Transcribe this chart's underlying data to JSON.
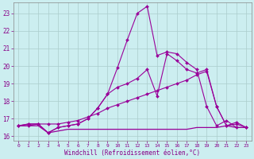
{
  "xlabel": "Windchill (Refroidissement éolien,°C)",
  "xlim": [
    -0.5,
    23.5
  ],
  "ylim": [
    15.75,
    23.6
  ],
  "xticks": [
    0,
    1,
    2,
    3,
    4,
    5,
    6,
    7,
    8,
    9,
    10,
    11,
    12,
    13,
    14,
    15,
    16,
    17,
    18,
    19,
    20,
    21,
    22,
    23
  ],
  "yticks": [
    16,
    17,
    18,
    19,
    20,
    21,
    22,
    23
  ],
  "bg_color": "#cceef0",
  "line_color": "#990099",
  "grid_color": "#aacccc",
  "lines": [
    {
      "x": [
        0,
        1,
        2,
        3,
        4,
        5,
        6,
        7,
        8,
        9,
        10,
        11,
        12,
        13,
        14,
        15,
        16,
        17,
        18,
        19,
        20,
        21,
        22,
        23
      ],
      "y": [
        16.6,
        16.7,
        16.7,
        16.2,
        16.5,
        16.6,
        16.7,
        17.0,
        17.6,
        18.4,
        19.9,
        21.5,
        23.0,
        23.4,
        20.6,
        20.8,
        20.7,
        20.2,
        19.8,
        17.7,
        16.6,
        16.9,
        16.5,
        16.5
      ],
      "marker": "D",
      "markersize": 2.0,
      "linewidth": 0.8
    },
    {
      "x": [
        0,
        1,
        2,
        3,
        4,
        5,
        6,
        7,
        8,
        9,
        10,
        11,
        12,
        13,
        14,
        15,
        16,
        17,
        18,
        19,
        20,
        21,
        22,
        23
      ],
      "y": [
        16.6,
        16.7,
        16.7,
        16.2,
        16.5,
        16.6,
        16.7,
        17.0,
        17.6,
        18.4,
        18.8,
        19.0,
        19.3,
        19.8,
        18.3,
        20.7,
        20.3,
        19.8,
        19.6,
        19.8,
        17.7,
        16.6,
        16.7,
        16.5
      ],
      "marker": "D",
      "markersize": 2.0,
      "linewidth": 0.8
    },
    {
      "x": [
        0,
        1,
        2,
        3,
        4,
        5,
        6,
        7,
        8,
        9,
        10,
        11,
        12,
        13,
        14,
        15,
        16,
        17,
        18,
        19,
        20,
        21,
        22,
        23
      ],
      "y": [
        16.6,
        16.6,
        16.7,
        16.7,
        16.7,
        16.8,
        16.9,
        17.1,
        17.3,
        17.6,
        17.8,
        18.0,
        18.2,
        18.4,
        18.6,
        18.8,
        19.0,
        19.2,
        19.5,
        19.7,
        17.7,
        16.6,
        16.8,
        16.5
      ],
      "marker": "D",
      "markersize": 2.0,
      "linewidth": 0.8
    },
    {
      "x": [
        0,
        1,
        2,
        3,
        4,
        5,
        6,
        7,
        8,
        9,
        10,
        11,
        12,
        13,
        14,
        15,
        16,
        17,
        18,
        19,
        20,
        21,
        22,
        23
      ],
      "y": [
        16.6,
        16.6,
        16.6,
        16.2,
        16.3,
        16.4,
        16.4,
        16.4,
        16.4,
        16.4,
        16.4,
        16.4,
        16.4,
        16.4,
        16.4,
        16.4,
        16.4,
        16.4,
        16.5,
        16.5,
        16.5,
        16.6,
        16.5,
        16.5
      ],
      "marker": null,
      "markersize": 0,
      "linewidth": 0.9
    }
  ]
}
